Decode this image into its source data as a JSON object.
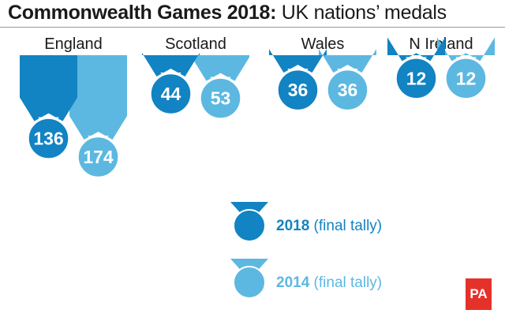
{
  "title": {
    "bold": "Commonwealth Games 2018:",
    "rest": "UK nations’ medals"
  },
  "colors": {
    "series_2018": "#1283c3",
    "series_2014": "#5cb8e1"
  },
  "chart_data": {
    "type": "bar",
    "title": "Commonwealth Games 2018: UK nations’ medals",
    "categories": [
      "England",
      "Scotland",
      "Wales",
      "N Ireland"
    ],
    "series": [
      {
        "name": "2018 (final tally)",
        "year": "2018",
        "note": "(final tally)",
        "values": [
          136,
          44,
          36,
          12
        ]
      },
      {
        "name": "2014 (final tally)",
        "year": "2014",
        "note": "(final tally)",
        "values": [
          174,
          53,
          36,
          12
        ]
      }
    ],
    "xlabel": "",
    "ylabel": "",
    "grid": false,
    "legend_position": "bottom-right"
  },
  "logo": {
    "text": "PA"
  }
}
